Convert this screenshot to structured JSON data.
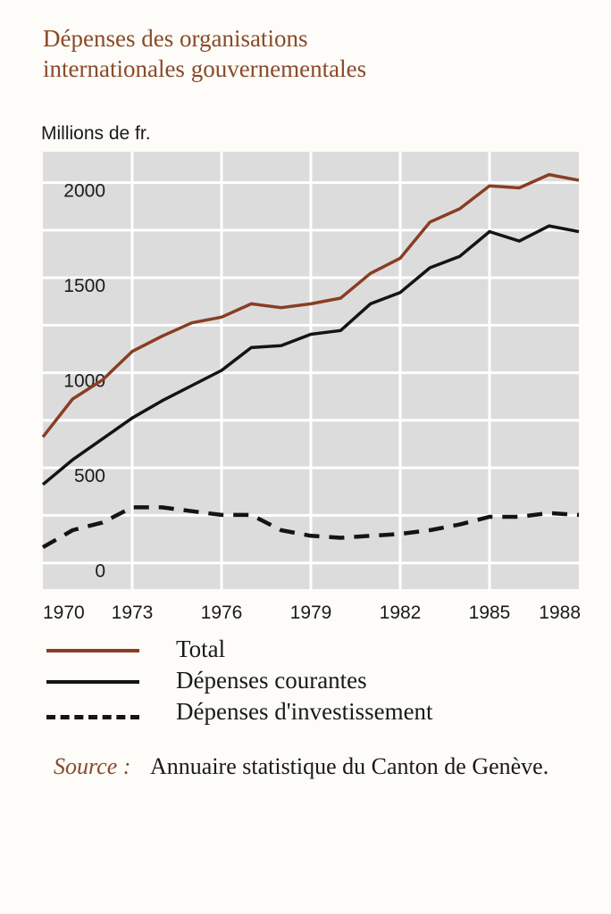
{
  "title": {
    "line1": "Dépenses des organisations",
    "line2": "internationales gouvernementales"
  },
  "chart_data": {
    "type": "line",
    "ylabel": "Millions de fr.",
    "x": [
      1970,
      1971,
      1972,
      1973,
      1974,
      1975,
      1976,
      1977,
      1978,
      1979,
      1980,
      1981,
      1982,
      1983,
      1984,
      1985,
      1986,
      1987,
      1988
    ],
    "x_tick_labels": [
      "1970",
      "1973",
      "1976",
      "1979",
      "1982",
      "1985",
      "1988"
    ],
    "y_tick_labels": [
      "0",
      "500",
      "1000",
      "1500",
      "2000"
    ],
    "xlim": [
      1970,
      1988
    ],
    "ylim": [
      -100,
      2200
    ],
    "grid": true,
    "legend_placement": "bottom",
    "series": [
      {
        "name": "Total",
        "color": "#8a3d24",
        "style": "solid",
        "values": [
          700,
          900,
          1000,
          1150,
          1230,
          1300,
          1330,
          1400,
          1380,
          1400,
          1430,
          1560,
          1640,
          1830,
          1900,
          2020,
          2010,
          2080,
          2050
        ]
      },
      {
        "name": "Dépenses courantes",
        "color": "#141414",
        "style": "solid",
        "values": [
          450,
          580,
          690,
          800,
          890,
          970,
          1050,
          1170,
          1180,
          1240,
          1260,
          1400,
          1460,
          1590,
          1650,
          1780,
          1730,
          1810,
          1780
        ]
      },
      {
        "name": "Dépenses d'investissement",
        "color": "#141414",
        "style": "dashed",
        "values": [
          120,
          210,
          250,
          330,
          330,
          310,
          290,
          290,
          210,
          180,
          170,
          180,
          190,
          210,
          240,
          280,
          280,
          300,
          290
        ]
      }
    ]
  },
  "source": {
    "label": "Source :",
    "text": "Annuaire statistique du Canton de Genève."
  },
  "colors": {
    "plot_background": "#dcdcdc",
    "grid": "#ffffff",
    "title": "#8a4a2a"
  }
}
